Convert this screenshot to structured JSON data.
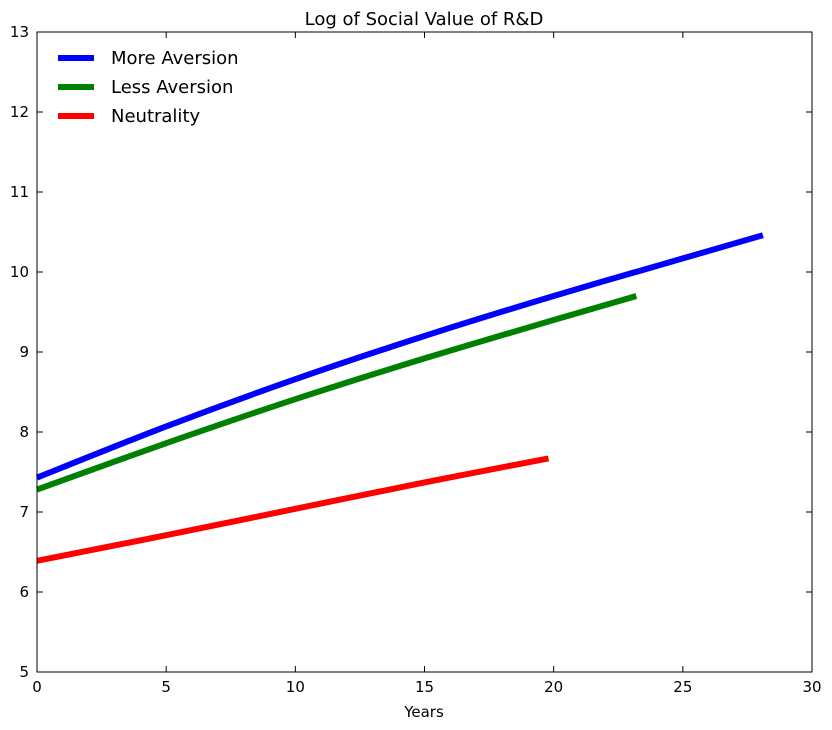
{
  "chart_data": {
    "type": "line",
    "title": "Log of Social Value of R&D",
    "xlabel": "Years",
    "ylabel": "",
    "xlim": [
      0,
      30
    ],
    "ylim": [
      5,
      13
    ],
    "xticks": [
      0,
      5,
      10,
      15,
      20,
      25,
      30
    ],
    "yticks": [
      5,
      6,
      7,
      8,
      9,
      10,
      11,
      12,
      13
    ],
    "grid": false,
    "legend_position": "top-left",
    "series": [
      {
        "name": "More Aversion",
        "color": "#0000ff",
        "x": [
          0,
          5,
          10,
          15,
          20,
          25,
          28.1
        ],
        "y": [
          7.43,
          8.07,
          8.66,
          9.2,
          9.7,
          10.17,
          10.46
        ]
      },
      {
        "name": "Less Aversion",
        "color": "#008000",
        "x": [
          0,
          5,
          10,
          15,
          20,
          23.2
        ],
        "y": [
          7.28,
          7.86,
          8.41,
          8.92,
          9.4,
          9.7
        ]
      },
      {
        "name": "Neutrality",
        "color": "#ff0000",
        "x": [
          0,
          5,
          10,
          15,
          19.8
        ],
        "y": [
          6.39,
          6.71,
          7.04,
          7.37,
          7.67
        ]
      }
    ]
  }
}
